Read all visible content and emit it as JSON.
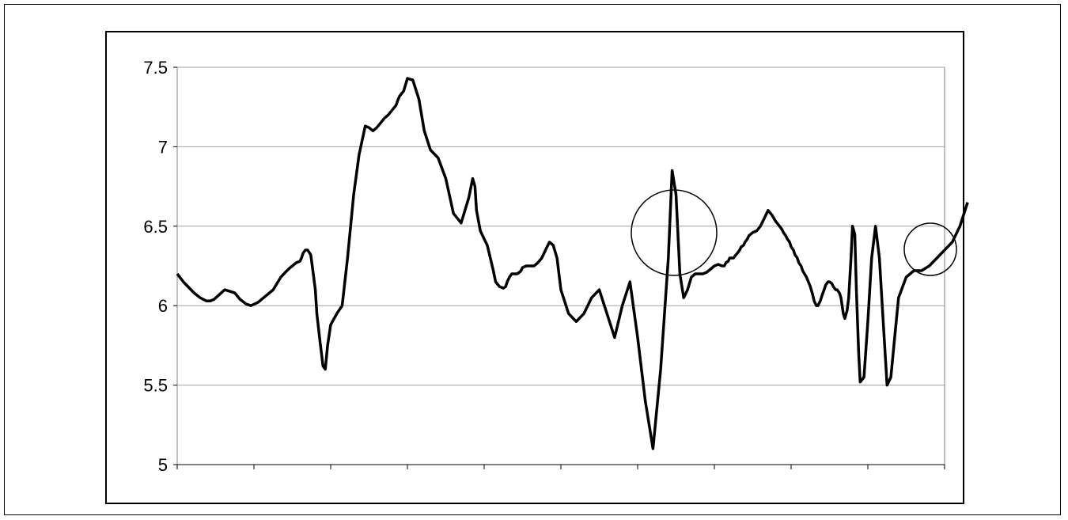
{
  "chart_data": {
    "type": "line",
    "title": "",
    "xlabel": "",
    "ylabel": "",
    "ylim": [
      5,
      7.5
    ],
    "y_ticks": [
      "5",
      "5.5",
      "6",
      "6.5",
      "7",
      "7.5"
    ],
    "x_tick_count": 10,
    "grid": "horizontal",
    "legend": "none",
    "line_color": "#000000",
    "series": [
      {
        "x": [
          0.0,
          0.08,
          0.22,
          0.3,
          0.38,
          0.43,
          0.48,
          0.55,
          0.62,
          0.75,
          0.82,
          0.9,
          0.96,
          1.05,
          1.15,
          1.25,
          1.35,
          1.45,
          1.5,
          1.55,
          1.6,
          1.62,
          1.64,
          1.67,
          1.7,
          1.74,
          1.76,
          1.8,
          1.82,
          1.86,
          1.9,
          1.93,
          1.96,
          2.0,
          2.08,
          2.15,
          2.22,
          2.3,
          2.37,
          2.45,
          2.5,
          2.55,
          2.6,
          2.65,
          2.7,
          2.75,
          2.8,
          2.85,
          2.88,
          2.9,
          2.95,
          3.0,
          3.07,
          3.15,
          3.22,
          3.3,
          3.4,
          3.5,
          3.6,
          3.7,
          3.8,
          3.85,
          3.88,
          3.9,
          3.95,
          4.0,
          4.04,
          4.08,
          4.12,
          4.15,
          4.2,
          4.25,
          4.28,
          4.3,
          4.33,
          4.36,
          4.38,
          4.4,
          4.43,
          4.46,
          4.48,
          4.5,
          4.55,
          4.6,
          4.65,
          4.7,
          4.75,
          4.8,
          4.85,
          4.9,
          4.95,
          5.0,
          5.1,
          5.2,
          5.3,
          5.4,
          5.5,
          5.6,
          5.7,
          5.8,
          5.9,
          6.0,
          6.1,
          6.2,
          6.3,
          6.4,
          6.45,
          6.5,
          6.55,
          6.6,
          6.65,
          6.7,
          6.75,
          6.8,
          6.85,
          6.9,
          6.95,
          7.0,
          7.05,
          7.1,
          7.13,
          7.15,
          7.18,
          7.2,
          7.23,
          7.25,
          7.28,
          7.3,
          7.33,
          7.35,
          7.38,
          7.4,
          7.43,
          7.45,
          7.5,
          7.55,
          7.6,
          7.65,
          7.7,
          7.75,
          7.8,
          7.85,
          7.88,
          7.9,
          7.93,
          7.95,
          7.98,
          8.0,
          8.03,
          8.05,
          8.08,
          8.1,
          8.13,
          8.15,
          8.2,
          8.25,
          8.28,
          8.3,
          8.33,
          8.35,
          8.38,
          8.4,
          8.43,
          8.45,
          8.48,
          8.5,
          8.53,
          8.55,
          8.58,
          8.6,
          8.63,
          8.65,
          8.68,
          8.7,
          8.73,
          8.75,
          8.78,
          8.8,
          8.83,
          8.85,
          8.88,
          8.9,
          8.95,
          9.0,
          9.05,
          9.1,
          9.15,
          9.2,
          9.25,
          9.3,
          9.35,
          9.4,
          9.5,
          9.6,
          9.7,
          9.8,
          9.9,
          10.0,
          10.1,
          10.2,
          10.3
        ],
        "values": [
          6.2,
          6.15,
          6.08,
          6.05,
          6.03,
          6.03,
          6.04,
          6.07,
          6.1,
          6.08,
          6.04,
          6.01,
          6.0,
          6.02,
          6.06,
          6.1,
          6.18,
          6.23,
          6.25,
          6.27,
          6.28,
          6.3,
          6.33,
          6.35,
          6.35,
          6.32,
          6.25,
          6.1,
          5.95,
          5.78,
          5.62,
          5.6,
          5.75,
          5.88,
          5.95,
          6.0,
          6.3,
          6.7,
          6.95,
          7.13,
          7.12,
          7.1,
          7.12,
          7.15,
          7.18,
          7.2,
          7.23,
          7.26,
          7.3,
          7.32,
          7.35,
          7.43,
          7.42,
          7.3,
          7.1,
          6.98,
          6.93,
          6.8,
          6.58,
          6.52,
          6.68,
          6.8,
          6.75,
          6.6,
          6.47,
          6.42,
          6.38,
          6.3,
          6.22,
          6.15,
          6.12,
          6.11,
          6.12,
          6.15,
          6.18,
          6.2,
          6.2,
          6.2,
          6.2,
          6.21,
          6.22,
          6.24,
          6.25,
          6.25,
          6.25,
          6.27,
          6.3,
          6.35,
          6.4,
          6.38,
          6.3,
          6.1,
          5.95,
          5.9,
          5.95,
          6.05,
          6.1,
          5.95,
          5.8,
          6.0,
          6.15,
          5.8,
          5.4,
          5.1,
          5.6,
          6.3,
          6.85,
          6.7,
          6.2,
          6.05,
          6.1,
          6.18,
          6.2,
          6.2,
          6.2,
          6.21,
          6.23,
          6.25,
          6.26,
          6.25,
          6.25,
          6.27,
          6.28,
          6.3,
          6.3,
          6.3,
          6.32,
          6.33,
          6.35,
          6.37,
          6.38,
          6.4,
          6.42,
          6.44,
          6.46,
          6.47,
          6.5,
          6.55,
          6.6,
          6.57,
          6.53,
          6.5,
          6.48,
          6.46,
          6.44,
          6.42,
          6.4,
          6.37,
          6.35,
          6.32,
          6.3,
          6.27,
          6.25,
          6.22,
          6.18,
          6.12,
          6.07,
          6.03,
          6.0,
          6.0,
          6.03,
          6.06,
          6.1,
          6.13,
          6.15,
          6.15,
          6.14,
          6.12,
          6.1,
          6.1,
          6.08,
          6.05,
          5.95,
          5.92,
          5.97,
          6.05,
          6.3,
          6.5,
          6.45,
          6.1,
          5.7,
          5.52,
          5.55,
          5.9,
          6.3,
          6.5,
          6.3,
          5.9,
          5.5,
          5.55,
          5.8,
          6.05,
          6.18,
          6.22,
          6.22,
          6.25,
          6.3,
          6.35,
          6.4,
          6.5,
          6.65
        ]
      }
    ]
  }
}
